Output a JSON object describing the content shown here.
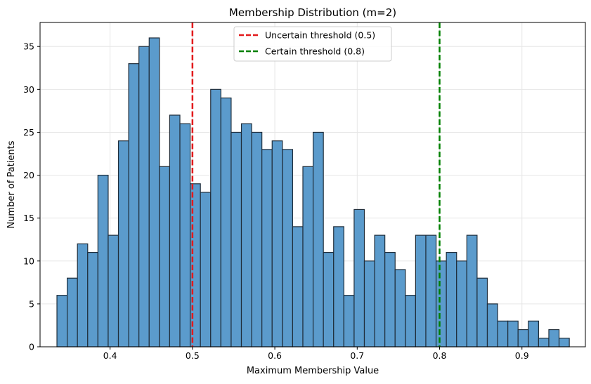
{
  "chart_data": {
    "type": "bar",
    "title": "Membership Distribution (m=2)",
    "xlabel": "Maximum Membership Value",
    "ylabel": "Number of Patients",
    "xlim": [
      0.315,
      0.977
    ],
    "ylim": [
      0,
      37.8
    ],
    "xticks": [
      0.4,
      0.5,
      0.6,
      0.7,
      0.8,
      0.9
    ],
    "xtick_labels": [
      "0.4",
      "0.5",
      "0.6",
      "0.7",
      "0.8",
      "0.9"
    ],
    "yticks": [
      0,
      5,
      10,
      15,
      20,
      25,
      30,
      35
    ],
    "ytick_labels": [
      "0",
      "5",
      "10",
      "15",
      "20",
      "25",
      "30",
      "35"
    ],
    "grid": true,
    "bar_color": "#5b9bcc",
    "bar_edge_color": "#1f2d3a",
    "bins_start": 0.3355,
    "bin_width": 0.01244,
    "values": [
      6,
      8,
      12,
      11,
      20,
      13,
      24,
      33,
      35,
      36,
      21,
      27,
      26,
      19,
      18,
      30,
      29,
      25,
      26,
      25,
      23,
      24,
      23,
      14,
      21,
      25,
      11,
      14,
      6,
      16,
      10,
      13,
      11,
      9,
      6,
      13,
      13,
      10,
      11,
      10,
      13,
      8,
      5,
      3,
      3,
      2,
      3,
      1,
      2,
      1
    ],
    "thresholds": [
      {
        "name": "Uncertain threshold (0.5)",
        "x": 0.5,
        "color": "#e31a1c"
      },
      {
        "name": "Certain threshold (0.8)",
        "x": 0.8,
        "color": "#008000"
      }
    ],
    "legend_position": "top-center"
  }
}
